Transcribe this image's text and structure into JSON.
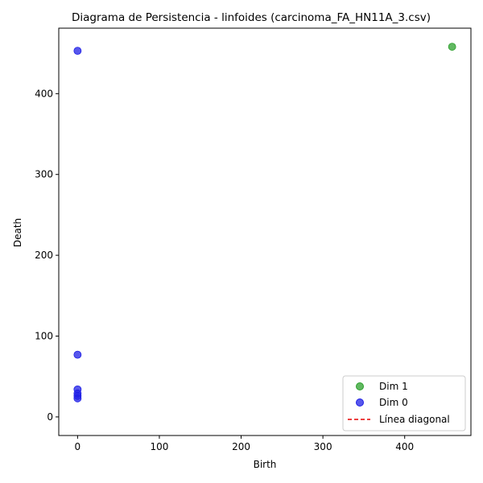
{
  "chart_data": {
    "type": "scatter",
    "title": "Diagrama de Persistencia - linfoides (carcinoma_FA_HN11A_3.csv)",
    "xlabel": "Birth",
    "ylabel": "Death",
    "xlim": [
      -23,
      481
    ],
    "ylim": [
      -23,
      481
    ],
    "xticks": [
      0,
      100,
      200,
      300,
      400
    ],
    "yticks": [
      0,
      100,
      200,
      300,
      400
    ],
    "grid": false,
    "legend_position": "lower-right",
    "series": [
      {
        "name": "Dim 1",
        "color": "#2ca02c",
        "points": [
          [
            458,
            458
          ]
        ]
      },
      {
        "name": "Dim 0",
        "color": "#1f1fe6",
        "points": [
          [
            0,
            453
          ],
          [
            0,
            77
          ],
          [
            0,
            34
          ],
          [
            0,
            29
          ],
          [
            0,
            26
          ],
          [
            0,
            23
          ]
        ]
      }
    ],
    "diagonal": {
      "name": "Línea diagonal",
      "color": "#e60000"
    }
  }
}
